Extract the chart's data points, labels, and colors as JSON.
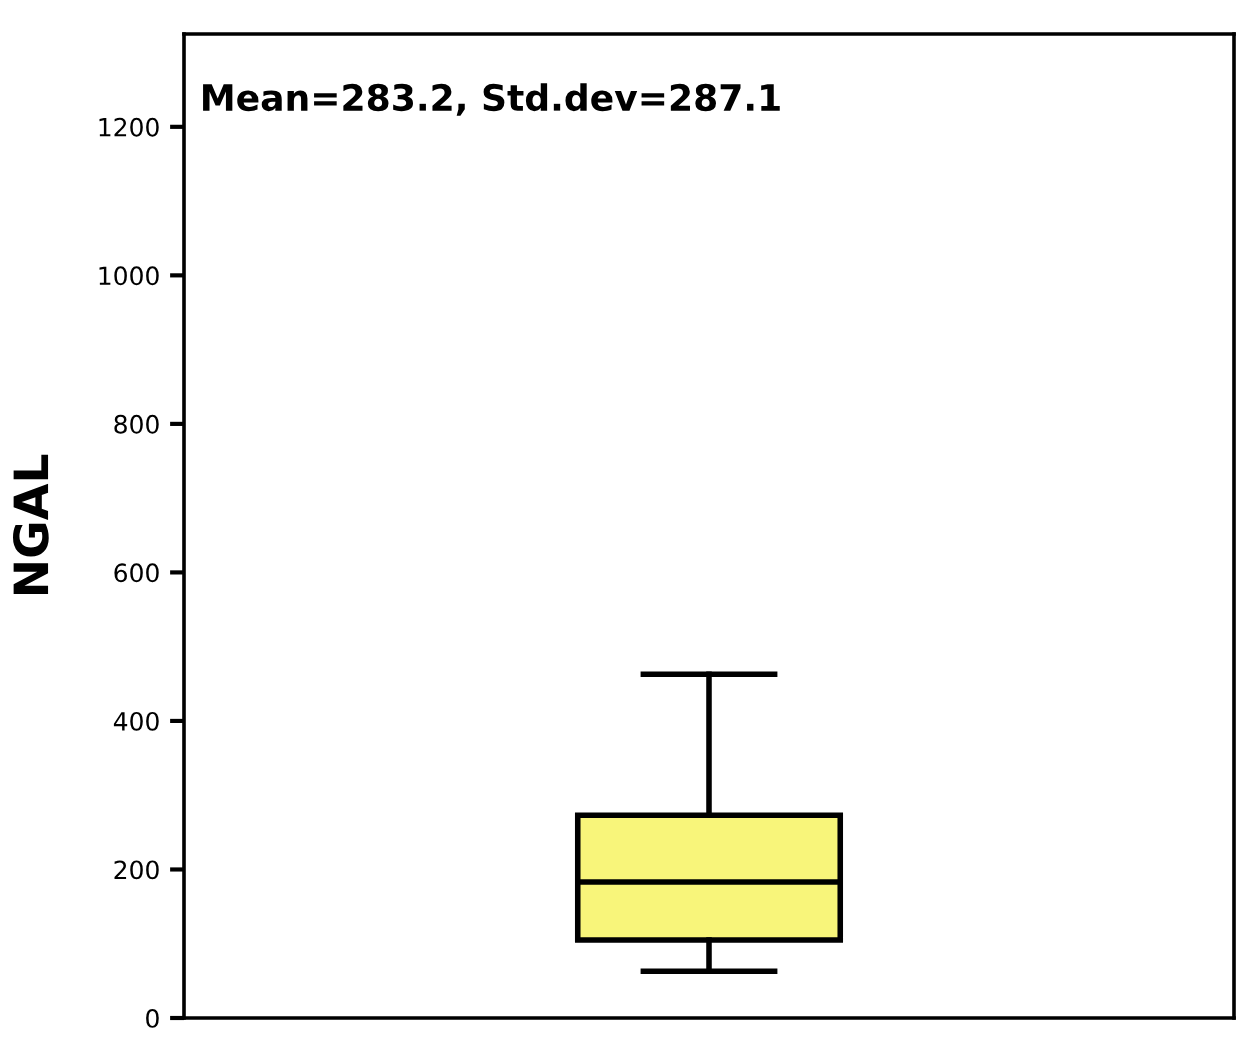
{
  "chart_data": {
    "type": "box",
    "ylabel": "NGAL",
    "categories": [
      null
    ],
    "boxes": [
      {
        "low": 63,
        "q1": 105,
        "median": 183,
        "q3": 273,
        "high": 463
      }
    ],
    "color": "#f8f57a",
    "annotations": [
      "Mean=283.2, Std.dev=287.1"
    ],
    "ylim": [
      0,
      1325
    ],
    "yticks": [
      0,
      200,
      400,
      600,
      800,
      1000,
      1200
    ],
    "grid": false
  }
}
